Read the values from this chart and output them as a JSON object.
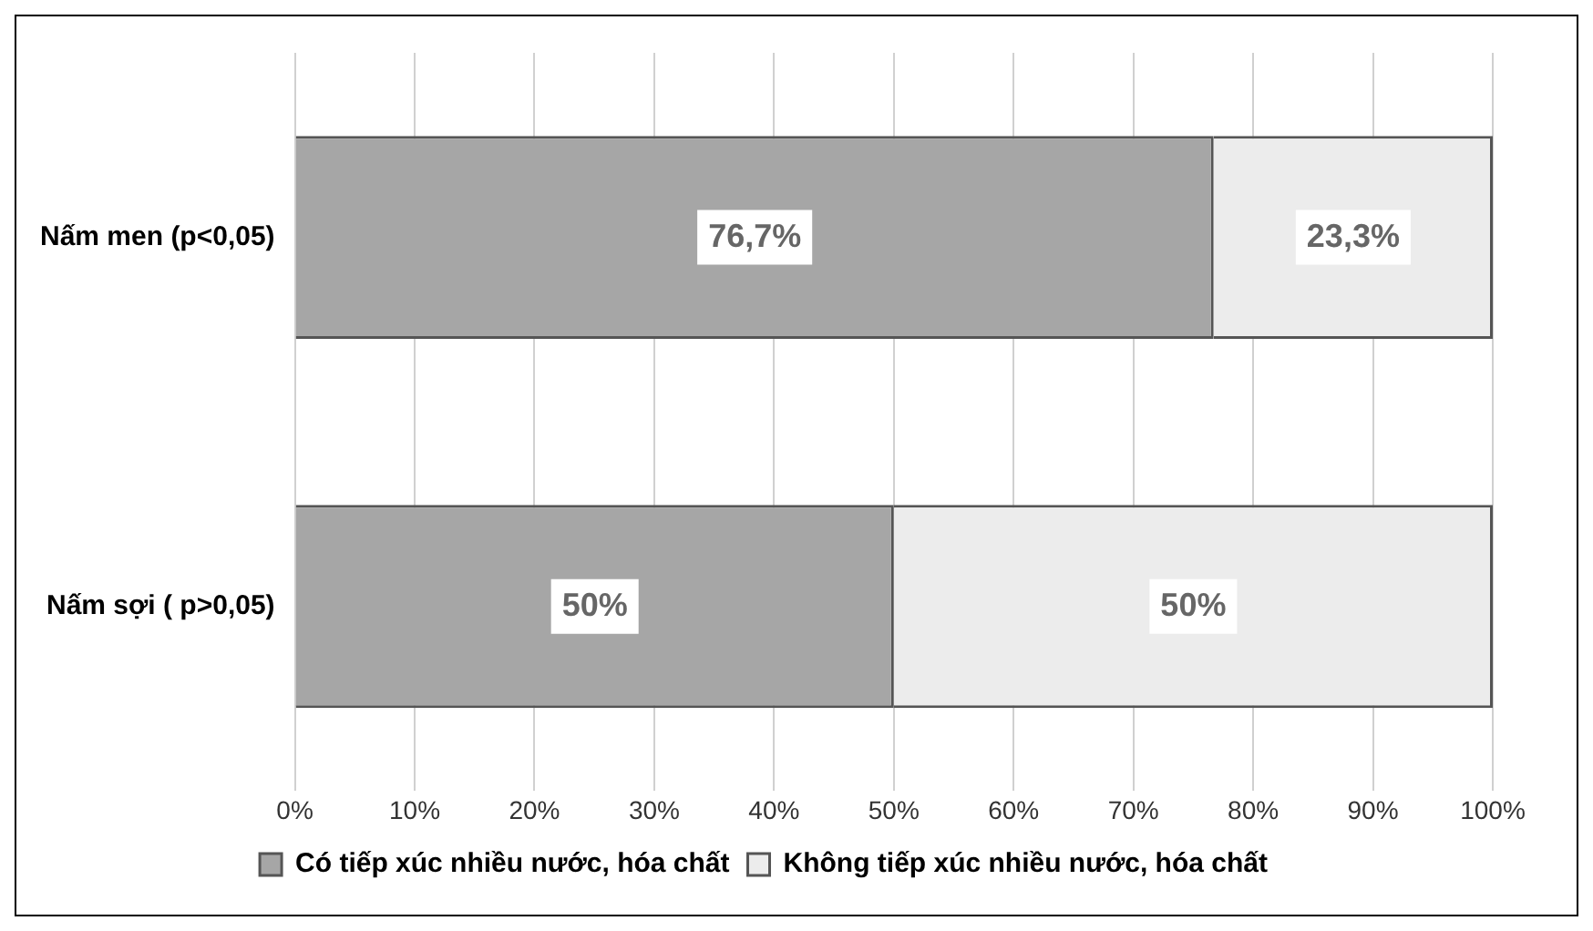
{
  "chart_data": {
    "type": "bar",
    "orientation": "horizontal",
    "stacked": true,
    "categories": [
      "Nấm men (p<0,05)",
      "Nấm sợi ( p>0,05)"
    ],
    "series": [
      {
        "name": "Có tiếp xúc nhiều nước, hóa chất",
        "color": "#a6a6a6",
        "values": [
          76.7,
          50
        ],
        "value_labels": [
          "76,7%",
          "50%"
        ]
      },
      {
        "name": "Không tiếp xúc nhiều nước, hóa chất",
        "color": "#ececec",
        "values": [
          23.3,
          50
        ],
        "value_labels": [
          "23,3%",
          "50%"
        ]
      }
    ],
    "xlim": [
      0,
      100
    ],
    "xticks": [
      {
        "value": 0,
        "label": "0%"
      },
      {
        "value": 10,
        "label": "10%"
      },
      {
        "value": 20,
        "label": "20%"
      },
      {
        "value": 30,
        "label": "30%"
      },
      {
        "value": 40,
        "label": "40%"
      },
      {
        "value": 50,
        "label": "50%"
      },
      {
        "value": 60,
        "label": "60%"
      },
      {
        "value": 70,
        "label": "70%"
      },
      {
        "value": 80,
        "label": "80%"
      },
      {
        "value": 90,
        "label": "90%"
      },
      {
        "value": 100,
        "label": "100%"
      }
    ],
    "grid": "x",
    "legend": "bottom"
  }
}
